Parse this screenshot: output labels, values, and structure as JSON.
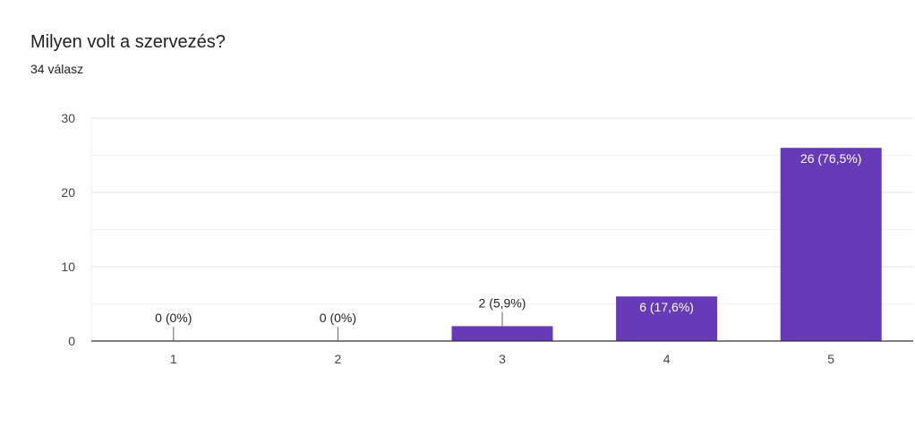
{
  "title": "Milyen volt a szervezés?",
  "subtitle": "34 válasz",
  "chart_data": {
    "type": "bar",
    "categories": [
      "1",
      "2",
      "3",
      "4",
      "5"
    ],
    "values": [
      0,
      0,
      2,
      6,
      26
    ],
    "data_labels": [
      "0 (0%)",
      "0 (0%)",
      "2 (5,9%)",
      "6 (17,6%)",
      "26 (76,5%)"
    ],
    "ylim": [
      0,
      30
    ],
    "yticks": [
      0,
      10,
      20,
      30
    ],
    "grid": true,
    "bar_color": "#673ab7"
  }
}
